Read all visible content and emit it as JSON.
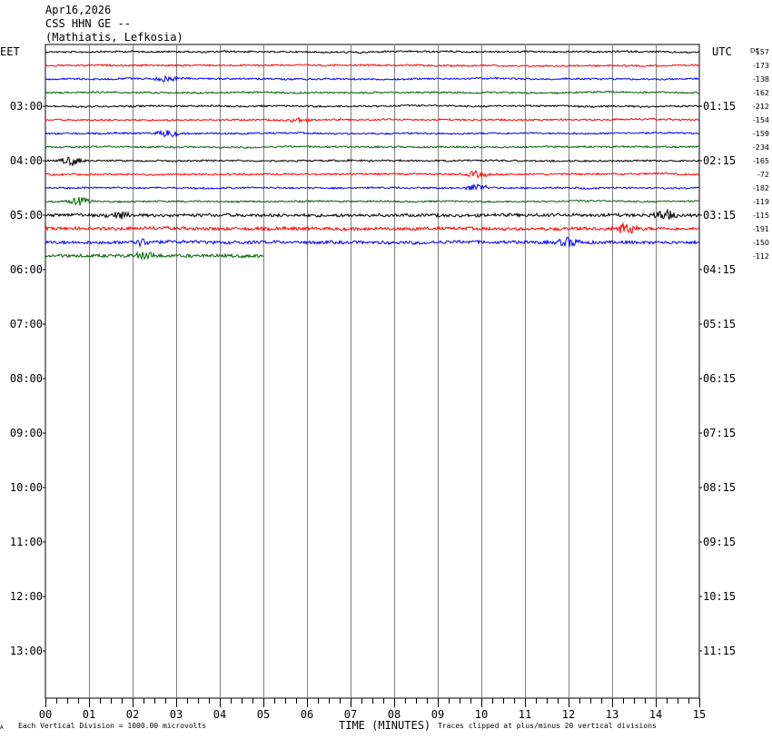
{
  "header": {
    "date": "Apr16,2026",
    "station": "CSS HHN GE --",
    "location": "(Mathiatis, Lefkosia)"
  },
  "left_tz": "EET",
  "right_tz": "UTC",
  "dc_label": "DC",
  "footer": {
    "corner_mark": "A",
    "scale_note": "Each Vertical Division = 1000.00 microvolts",
    "xlabel": "TIME (MINUTES)",
    "clip_note": "Traces clipped at plus/minus 20 vertical divisions"
  },
  "colors": {
    "grid": "#808080",
    "traces": [
      "#000000",
      "#ff0000",
      "#0000ff",
      "#006400"
    ]
  },
  "chart_data": {
    "type": "line",
    "title": "CSS HHN GE -- (Mathiatis, Lefkosia)",
    "xlabel": "TIME (MINUTES)",
    "ylabel": "",
    "xlim": [
      0,
      15
    ],
    "x_ticks": [
      "00",
      "01",
      "02",
      "03",
      "04",
      "05",
      "06",
      "07",
      "08",
      "09",
      "10",
      "11",
      "12",
      "13",
      "14",
      "15"
    ],
    "left_hour_labels": [
      "03:00",
      "04:00",
      "05:00",
      "06:00",
      "07:00",
      "08:00",
      "09:00",
      "10:00",
      "11:00",
      "12:00",
      "13:00"
    ],
    "right_hour_labels": [
      "01:15",
      "02:15",
      "03:15",
      "04:15",
      "05:15",
      "06:15",
      "07:15",
      "08:15",
      "09:15",
      "10:15",
      "11:15"
    ],
    "rows_per_hour": 4,
    "trace_color_cycle": [
      "black",
      "red",
      "blue",
      "green"
    ],
    "traces": [
      {
        "row": 0,
        "dc": "157",
        "end_minute": 15,
        "color": "black"
      },
      {
        "row": 1,
        "dc": "-173",
        "end_minute": 15,
        "color": "red"
      },
      {
        "row": 2,
        "dc": "-138",
        "end_minute": 15,
        "color": "blue"
      },
      {
        "row": 3,
        "dc": "-162",
        "end_minute": 15,
        "color": "green"
      },
      {
        "row": 4,
        "dc": "-212",
        "end_minute": 15,
        "color": "black"
      },
      {
        "row": 5,
        "dc": "-154",
        "end_minute": 15,
        "color": "red"
      },
      {
        "row": 6,
        "dc": "-159",
        "end_minute": 15,
        "color": "blue"
      },
      {
        "row": 7,
        "dc": "-234",
        "end_minute": 15,
        "color": "green"
      },
      {
        "row": 8,
        "dc": "-165",
        "end_minute": 15,
        "color": "black"
      },
      {
        "row": 9,
        "dc": "-72",
        "end_minute": 15,
        "color": "red"
      },
      {
        "row": 10,
        "dc": "-182",
        "end_minute": 15,
        "color": "blue"
      },
      {
        "row": 11,
        "dc": "-119",
        "end_minute": 15,
        "color": "green"
      },
      {
        "row": 12,
        "dc": "-115",
        "end_minute": 15,
        "color": "black"
      },
      {
        "row": 13,
        "dc": "-191",
        "end_minute": 15,
        "color": "red"
      },
      {
        "row": 14,
        "dc": "-150",
        "end_minute": 15,
        "color": "blue"
      },
      {
        "row": 15,
        "dc": "-112",
        "end_minute": 5,
        "color": "green"
      }
    ],
    "events": [
      {
        "row": 2,
        "minute": 2.8,
        "amplitude": 1.5
      },
      {
        "row": 5,
        "minute": 5.8,
        "amplitude": 1.0
      },
      {
        "row": 6,
        "minute": 2.8,
        "amplitude": 1.8
      },
      {
        "row": 8,
        "minute": 0.6,
        "amplitude": 2.2
      },
      {
        "row": 9,
        "minute": 9.9,
        "amplitude": 1.5
      },
      {
        "row": 10,
        "minute": 9.9,
        "amplitude": 2.0
      },
      {
        "row": 11,
        "minute": 0.8,
        "amplitude": 2.0
      },
      {
        "row": 12,
        "minute": 1.7,
        "amplitude": 1.6
      },
      {
        "row": 12,
        "minute": 14.2,
        "amplitude": 2.5
      },
      {
        "row": 13,
        "minute": 13.3,
        "amplitude": 3.0
      },
      {
        "row": 14,
        "minute": 2.2,
        "amplitude": 1.6
      },
      {
        "row": 14,
        "minute": 12.0,
        "amplitude": 2.0
      },
      {
        "row": 15,
        "minute": 2.3,
        "amplitude": 1.6
      }
    ],
    "grid": true
  }
}
